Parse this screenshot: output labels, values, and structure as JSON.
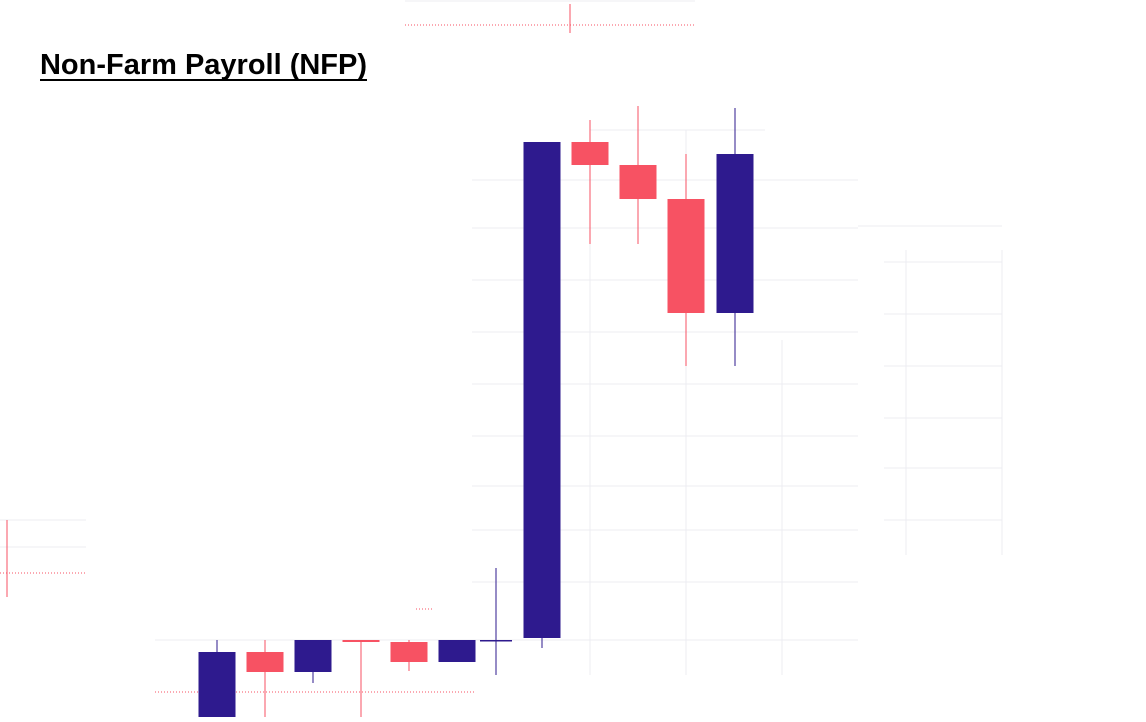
{
  "chart_data": {
    "type": "candlestick",
    "title": "Non-Farm Payroll (NFP)",
    "open": [
      -7.7,
      -1.2,
      -3.2,
      0,
      -0.2,
      -2.2,
      0,
      0.2,
      49.8,
      47.5,
      44.1,
      32.7
    ],
    "high": [
      0,
      0,
      0,
      0,
      0,
      0,
      7.2,
      49.8,
      52,
      53.4,
      48.6,
      53.2
    ],
    "low": [
      -7.7,
      -7.7,
      -4.3,
      -7.7,
      -3.1,
      -2.2,
      -3.5,
      -0.8,
      39.6,
      39.6,
      27.4,
      27.4
    ],
    "close": [
      -1.2,
      -3.2,
      0,
      -0.2,
      -2.2,
      0,
      0,
      49.8,
      47.5,
      44.1,
      32.7,
      48.6
    ],
    "up_color": "#2e1a8e",
    "down_color": "#f75263",
    "ylim": [
      -8,
      54
    ]
  }
}
